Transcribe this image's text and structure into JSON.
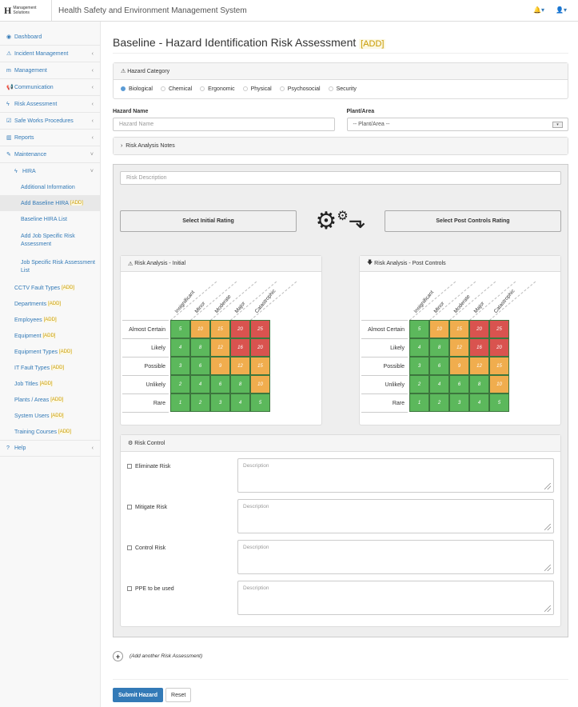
{
  "header": {
    "logo_text": "Management Solutions",
    "title": "Health Safety and Environment Management System"
  },
  "sidebar": {
    "items": [
      {
        "label": "Dashboard",
        "icon": "dashboard-icon",
        "glyph": "◉",
        "chev": ""
      },
      {
        "label": "Incident Management",
        "icon": "warning-icon",
        "glyph": "⚠",
        "chev": "‹"
      },
      {
        "label": "Management",
        "icon": "management-icon",
        "glyph": "m",
        "chev": "‹"
      },
      {
        "label": "Communication",
        "icon": "bullhorn-icon",
        "glyph": "📢",
        "chev": "‹"
      },
      {
        "label": "Risk Assessment",
        "icon": "bolt-icon",
        "glyph": "ϟ",
        "chev": "‹"
      },
      {
        "label": "Safe Works Procedures",
        "icon": "clipboard-icon",
        "glyph": "☑",
        "chev": "‹"
      },
      {
        "label": "Reports",
        "icon": "bar-chart-icon",
        "glyph": "▥",
        "chev": "‹"
      },
      {
        "label": "Maintenance",
        "icon": "wrench-icon",
        "glyph": "✎",
        "chev": "˅"
      }
    ],
    "hira": {
      "label": "HIRA",
      "chev": "˅"
    },
    "hira_items": [
      "Additional Information",
      "Add Baseline HIRA",
      "Baseline HIRA List",
      "Add Job Specific Risk Assessment",
      "Job Specific Risk Assessment List"
    ],
    "add_tag": "[ADD]",
    "maint_items": [
      "CCTV Fault Types",
      "Departments",
      "Employees",
      "Equipment",
      "Equipment Types",
      "IT Fault Types",
      "Job Titles",
      "Plants / Areas",
      "System Users",
      "Training Courses"
    ],
    "help": "Help"
  },
  "page": {
    "title": "Baseline - Hazard Identification Risk Assessment",
    "tag": "[ADD]"
  },
  "hazard_category": {
    "heading": "Hazard Category",
    "options": [
      "Biological",
      "Chemical",
      "Ergonomic",
      "Physical",
      "Psychosocial",
      "Security"
    ],
    "selected": "Biological"
  },
  "form": {
    "hazard_name_label": "Hazard Name",
    "hazard_name_placeholder": "Hazard Name",
    "plant_label": "Plant/Area",
    "plant_value": "-- Plant/Area --",
    "notes_label": "Risk Analysis Notes",
    "risk_desc_placeholder": "Risk Description",
    "initial_btn": "Select Initial Rating",
    "post_btn": "Select Post Controls Rating"
  },
  "matrix": {
    "initial_title": "Risk Analysis - Initial",
    "post_title": "Risk Analysis - Post Controls",
    "columns": [
      "Insignificant",
      "Minor",
      "Moderate",
      "Major",
      "Catastrophic"
    ],
    "rows": [
      "Almost Certain",
      "Likely",
      "Possible",
      "Unlikely",
      "Rare"
    ],
    "values": [
      [
        5,
        10,
        15,
        20,
        25
      ],
      [
        4,
        8,
        12,
        16,
        20
      ],
      [
        3,
        6,
        9,
        12,
        15
      ],
      [
        2,
        4,
        6,
        8,
        10
      ],
      [
        1,
        2,
        3,
        4,
        5
      ]
    ],
    "colors": {
      "low": "#5cb85c",
      "medium": "#f0ad4e",
      "high": "#d9534f"
    }
  },
  "risk_control": {
    "heading": "Risk Control",
    "rows": [
      "Eliminate Risk",
      "Mitigate Risk",
      "Control Risk",
      "PPE to be used"
    ],
    "placeholder": "Description"
  },
  "add_another": "(Add another Risk Assessment)",
  "buttons": {
    "submit": "Submit Hazard",
    "reset": "Reset"
  }
}
